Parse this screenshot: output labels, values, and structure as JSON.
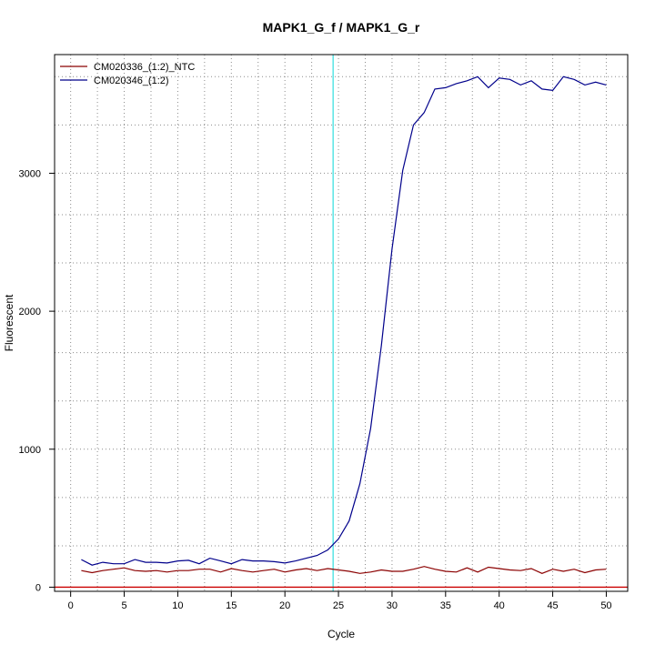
{
  "chart_data": {
    "type": "line",
    "title": "MAPK1_G_f / MAPK1_G_r",
    "xlabel": "Cycle",
    "ylabel": "Fluorescent",
    "xlim": [
      -1.5,
      52
    ],
    "ylim": [
      -30,
      3860
    ],
    "x_ticks": [
      0,
      5,
      10,
      15,
      20,
      25,
      30,
      35,
      40,
      45,
      50
    ],
    "y_ticks": [
      0,
      1000,
      2000,
      3000
    ],
    "x_grid": [
      2.5,
      7.5,
      12.5,
      17.5,
      22.5,
      27.5,
      32.5,
      37.5,
      42.5,
      47.5
    ],
    "y_grid": [
      300,
      650,
      1000,
      1350,
      1700,
      2000,
      2350,
      2700,
      3000,
      3350,
      3700
    ],
    "grid": true,
    "legend_position": "top-left",
    "threshold": {
      "x": 24.5,
      "color": "#40e0e0"
    },
    "baseline": {
      "y": 0,
      "color": "#cc0000"
    },
    "series": [
      {
        "name": "CM020336_(1:2)_NTC",
        "color": "#8b0000",
        "x": [
          1,
          2,
          3,
          4,
          5,
          6,
          7,
          8,
          9,
          10,
          11,
          12,
          13,
          14,
          15,
          16,
          17,
          18,
          19,
          20,
          21,
          22,
          23,
          24,
          25,
          26,
          27,
          28,
          29,
          30,
          31,
          32,
          33,
          34,
          35,
          36,
          37,
          38,
          39,
          40,
          41,
          42,
          43,
          44,
          45,
          46,
          47,
          48,
          49,
          50
        ],
        "y": [
          120,
          105,
          120,
          130,
          140,
          120,
          115,
          120,
          110,
          120,
          120,
          130,
          130,
          110,
          135,
          120,
          110,
          120,
          130,
          110,
          125,
          135,
          120,
          135,
          125,
          115,
          100,
          110,
          125,
          115,
          115,
          130,
          150,
          130,
          115,
          110,
          140,
          110,
          145,
          135,
          125,
          120,
          135,
          100,
          130,
          115,
          130,
          105,
          125,
          130
        ]
      },
      {
        "name": "CM020346_(1:2)",
        "color": "#00008b",
        "x": [
          1,
          2,
          3,
          4,
          5,
          6,
          7,
          8,
          9,
          10,
          11,
          12,
          13,
          14,
          15,
          16,
          17,
          18,
          19,
          20,
          21,
          22,
          23,
          24,
          25,
          26,
          27,
          28,
          29,
          30,
          31,
          32,
          33,
          34,
          35,
          36,
          37,
          38,
          39,
          40,
          41,
          42,
          43,
          44,
          45,
          46,
          47,
          48,
          49,
          50
        ],
        "y": [
          200,
          160,
          180,
          170,
          170,
          200,
          180,
          180,
          175,
          190,
          195,
          170,
          210,
          190,
          170,
          200,
          190,
          190,
          185,
          175,
          190,
          210,
          230,
          270,
          350,
          480,
          750,
          1150,
          1750,
          2450,
          3020,
          3350,
          3440,
          3610,
          3620,
          3650,
          3670,
          3700,
          3620,
          3690,
          3680,
          3640,
          3670,
          3610,
          3600,
          3700,
          3680,
          3640,
          3660,
          3640
        ]
      }
    ]
  }
}
